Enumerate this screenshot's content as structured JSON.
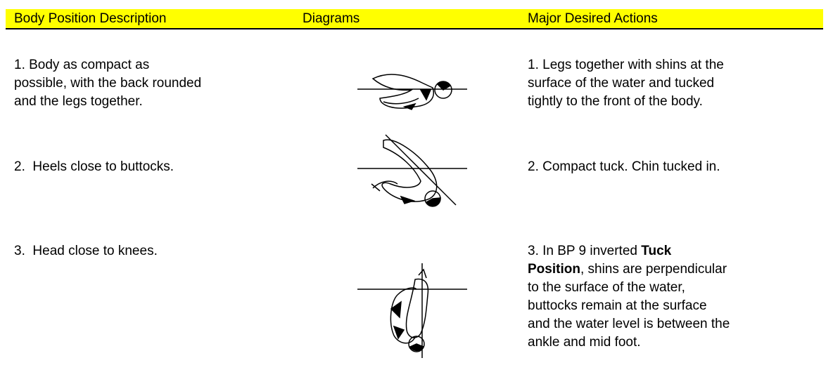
{
  "header": {
    "columns": [
      "Body Position Description",
      "Diagrams",
      "Major Desired Actions"
    ]
  },
  "rows": [
    {
      "description": [
        "1. Body as compact as",
        "possible, with the back rounded",
        "and the legs together."
      ],
      "actions": [
        [
          {
            "text": "1. Legs together with shins at the",
            "bold": false
          }
        ],
        [
          {
            "text": "surface of the water and tucked",
            "bold": false
          }
        ],
        [
          {
            "text": "tightly to the front of the body.",
            "bold": false
          }
        ]
      ]
    },
    {
      "description": [
        "2.  Heels close to buttocks."
      ],
      "actions": [
        [
          {
            "text": "2. Compact tuck. Chin tucked in.",
            "bold": false
          }
        ]
      ]
    },
    {
      "description": [
        "3.  Head close to knees."
      ],
      "actions": [
        [
          {
            "text": "3. In BP 9 inverted",
            "bold": false
          },
          {
            "text": "Tuck",
            "bold": true
          }
        ],
        [
          {
            "text": "Position",
            "bold": true
          },
          {
            "text": ", shins are perpendicular",
            "bold": false
          }
        ],
        [
          {
            "text": "to the surface of the water,",
            "bold": false
          }
        ],
        [
          {
            "text": "buttocks remain at the surface",
            "bold": false
          }
        ],
        [
          {
            "text": "and the water level is between the",
            "bold": false
          }
        ],
        [
          {
            "text": "ankle and mid foot.",
            "bold": false
          }
        ]
      ]
    }
  ]
}
